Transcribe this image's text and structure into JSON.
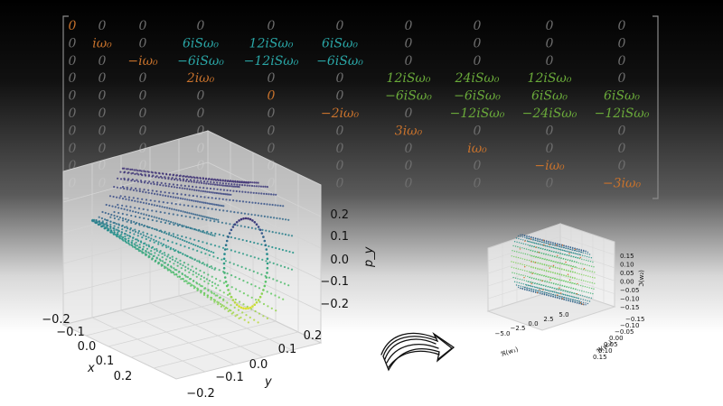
{
  "matrix": {
    "rows": [
      [
        {
          "t": "0",
          "c": "orange"
        },
        {
          "t": "0",
          "c": "grey"
        },
        {
          "t": "0",
          "c": "grey"
        },
        {
          "t": "0",
          "c": "grey"
        },
        {
          "t": "0",
          "c": "grey"
        },
        {
          "t": "0",
          "c": "grey"
        },
        {
          "t": "0",
          "c": "grey"
        },
        {
          "t": "0",
          "c": "grey"
        },
        {
          "t": "0",
          "c": "grey"
        },
        {
          "t": "0",
          "c": "grey"
        }
      ],
      [
        {
          "t": "0",
          "c": "grey"
        },
        {
          "t": "iω₀",
          "c": "orange"
        },
        {
          "t": "0",
          "c": "grey"
        },
        {
          "t": "6iSω₀",
          "c": "teal"
        },
        {
          "t": "12iSω₀",
          "c": "teal"
        },
        {
          "t": "6iSω₀",
          "c": "teal"
        },
        {
          "t": "0",
          "c": "grey"
        },
        {
          "t": "0",
          "c": "grey"
        },
        {
          "t": "0",
          "c": "grey"
        },
        {
          "t": "0",
          "c": "grey"
        }
      ],
      [
        {
          "t": "0",
          "c": "grey"
        },
        {
          "t": "0",
          "c": "grey"
        },
        {
          "t": "−iω₀",
          "c": "orange"
        },
        {
          "t": "−6iSω₀",
          "c": "teal"
        },
        {
          "t": "−12iSω₀",
          "c": "teal"
        },
        {
          "t": "−6iSω₀",
          "c": "teal"
        },
        {
          "t": "0",
          "c": "grey"
        },
        {
          "t": "0",
          "c": "grey"
        },
        {
          "t": "0",
          "c": "grey"
        },
        {
          "t": "0",
          "c": "grey"
        }
      ],
      [
        {
          "t": "0",
          "c": "grey"
        },
        {
          "t": "0",
          "c": "grey"
        },
        {
          "t": "0",
          "c": "grey"
        },
        {
          "t": "2iω₀",
          "c": "orange"
        },
        {
          "t": "0",
          "c": "grey"
        },
        {
          "t": "0",
          "c": "grey"
        },
        {
          "t": "12iSω₀",
          "c": "green"
        },
        {
          "t": "24iSω₀",
          "c": "green"
        },
        {
          "t": "12iSω₀",
          "c": "green"
        },
        {
          "t": "0",
          "c": "grey"
        }
      ],
      [
        {
          "t": "0",
          "c": "grey"
        },
        {
          "t": "0",
          "c": "grey"
        },
        {
          "t": "0",
          "c": "grey"
        },
        {
          "t": "0",
          "c": "grey"
        },
        {
          "t": "0",
          "c": "orange"
        },
        {
          "t": "0",
          "c": "grey"
        },
        {
          "t": "−6iSω₀",
          "c": "green"
        },
        {
          "t": "−6iSω₀",
          "c": "green"
        },
        {
          "t": "6iSω₀",
          "c": "green"
        },
        {
          "t": "6iSω₀",
          "c": "green"
        }
      ],
      [
        {
          "t": "0",
          "c": "grey"
        },
        {
          "t": "0",
          "c": "grey"
        },
        {
          "t": "0",
          "c": "grey"
        },
        {
          "t": "0",
          "c": "grey"
        },
        {
          "t": "0",
          "c": "grey"
        },
        {
          "t": "−2iω₀",
          "c": "orange"
        },
        {
          "t": "0",
          "c": "grey"
        },
        {
          "t": "−12iSω₀",
          "c": "green"
        },
        {
          "t": "−24iSω₀",
          "c": "green"
        },
        {
          "t": "−12iSω₀",
          "c": "green"
        }
      ],
      [
        {
          "t": "0",
          "c": "grey"
        },
        {
          "t": "0",
          "c": "grey"
        },
        {
          "t": "0",
          "c": "grey"
        },
        {
          "t": "0",
          "c": "grey"
        },
        {
          "t": "0",
          "c": "grey"
        },
        {
          "t": "0",
          "c": "grey"
        },
        {
          "t": "3iω₀",
          "c": "orange"
        },
        {
          "t": "0",
          "c": "grey"
        },
        {
          "t": "0",
          "c": "grey"
        },
        {
          "t": "0",
          "c": "grey"
        }
      ],
      [
        {
          "t": "0",
          "c": "grey"
        },
        {
          "t": "0",
          "c": "grey"
        },
        {
          "t": "0",
          "c": "grey"
        },
        {
          "t": "0",
          "c": "grey"
        },
        {
          "t": "0",
          "c": "grey"
        },
        {
          "t": "0",
          "c": "grey"
        },
        {
          "t": "0",
          "c": "grey"
        },
        {
          "t": "iω₀",
          "c": "orange"
        },
        {
          "t": "0",
          "c": "grey"
        },
        {
          "t": "0",
          "c": "grey"
        }
      ],
      [
        {
          "t": "0",
          "c": "grey"
        },
        {
          "t": "0",
          "c": "grey"
        },
        {
          "t": "0",
          "c": "grey"
        },
        {
          "t": "0",
          "c": "grey"
        },
        {
          "t": "0",
          "c": "grey"
        },
        {
          "t": "0",
          "c": "grey"
        },
        {
          "t": "0",
          "c": "grey"
        },
        {
          "t": "0",
          "c": "grey"
        },
        {
          "t": "−iω₀",
          "c": "orange"
        },
        {
          "t": "0",
          "c": "grey"
        }
      ],
      [
        {
          "t": "0",
          "c": "grey"
        },
        {
          "t": "0",
          "c": "grey"
        },
        {
          "t": "0",
          "c": "grey"
        },
        {
          "t": "0",
          "c": "grey"
        },
        {
          "t": "0",
          "c": "grey"
        },
        {
          "t": "0",
          "c": "grey"
        },
        {
          "t": "0",
          "c": "grey"
        },
        {
          "t": "0",
          "c": "grey"
        },
        {
          "t": "0",
          "c": "grey"
        },
        {
          "t": "−3iω₀",
          "c": "orange"
        }
      ]
    ],
    "colors": {
      "orange": "#c8722c",
      "teal": "#2aa6a6",
      "green": "#6aaa3a",
      "grey": "#6e6e6e"
    }
  },
  "plot_large": {
    "x_label": "x",
    "y_label": "y",
    "z_label": "p_y",
    "x_ticks": [
      "−0.2",
      "−0.1",
      "0.0",
      "0.1",
      "0.2"
    ],
    "y_ticks": [
      "−0.2",
      "−0.1",
      "0.0",
      "0.1",
      "0.2"
    ],
    "z_ticks": [
      "0.2",
      "0.1",
      "0.0",
      "−0.1",
      "−0.2"
    ]
  },
  "plot_small": {
    "x_label": "ℜ(w₁)",
    "y_label": "ℜ(w₂)",
    "z_label": "ℑ(w₂)",
    "x_ticks": [
      "−5.0",
      "−2.5",
      "0.0",
      "2.5",
      "5.0"
    ],
    "y_ticks": [
      "0.15",
      "0.10",
      "0.05",
      "0.00",
      "−0.05",
      "−0.10",
      "−0.15"
    ],
    "z_ticks": [
      "0.15",
      "0.10",
      "0.05",
      "0.00",
      "−0.05",
      "−0.10",
      "−0.15"
    ]
  },
  "colormap": [
    "#440154",
    "#3b528b",
    "#21918c",
    "#5ec962",
    "#fde725"
  ]
}
